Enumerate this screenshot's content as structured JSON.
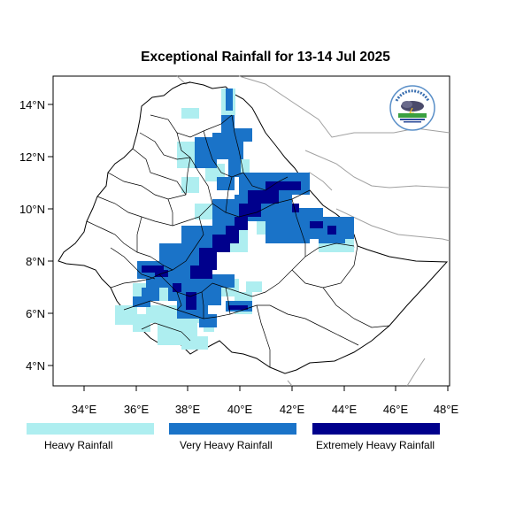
{
  "title": "Exceptional Rainfall for 13-14 Jul 2025",
  "axes": {
    "lon_ticks": [
      "34°E",
      "36°E",
      "38°E",
      "40°E",
      "42°E",
      "44°E",
      "46°E",
      "48°E"
    ],
    "lat_ticks": [
      "14°N",
      "12°N",
      "10°N",
      "8°N",
      "6°N",
      "4°N"
    ]
  },
  "legend": [
    {
      "label": "Heavy Rainfall",
      "color": "#aeeef0"
    },
    {
      "label": "Very Heavy Rainfall",
      "color": "#1a73c8"
    },
    {
      "label": "Extremely Heavy Rainfall",
      "color": "#00008c"
    }
  ],
  "colors": {
    "heavy": "#aeeef0",
    "very_heavy": "#1a73c8",
    "extreme": "#00008c",
    "border": "#000000",
    "neighbor_border": "#a0a0a0"
  },
  "logo": {
    "icon": "meteorology-institute-logo-icon"
  }
}
